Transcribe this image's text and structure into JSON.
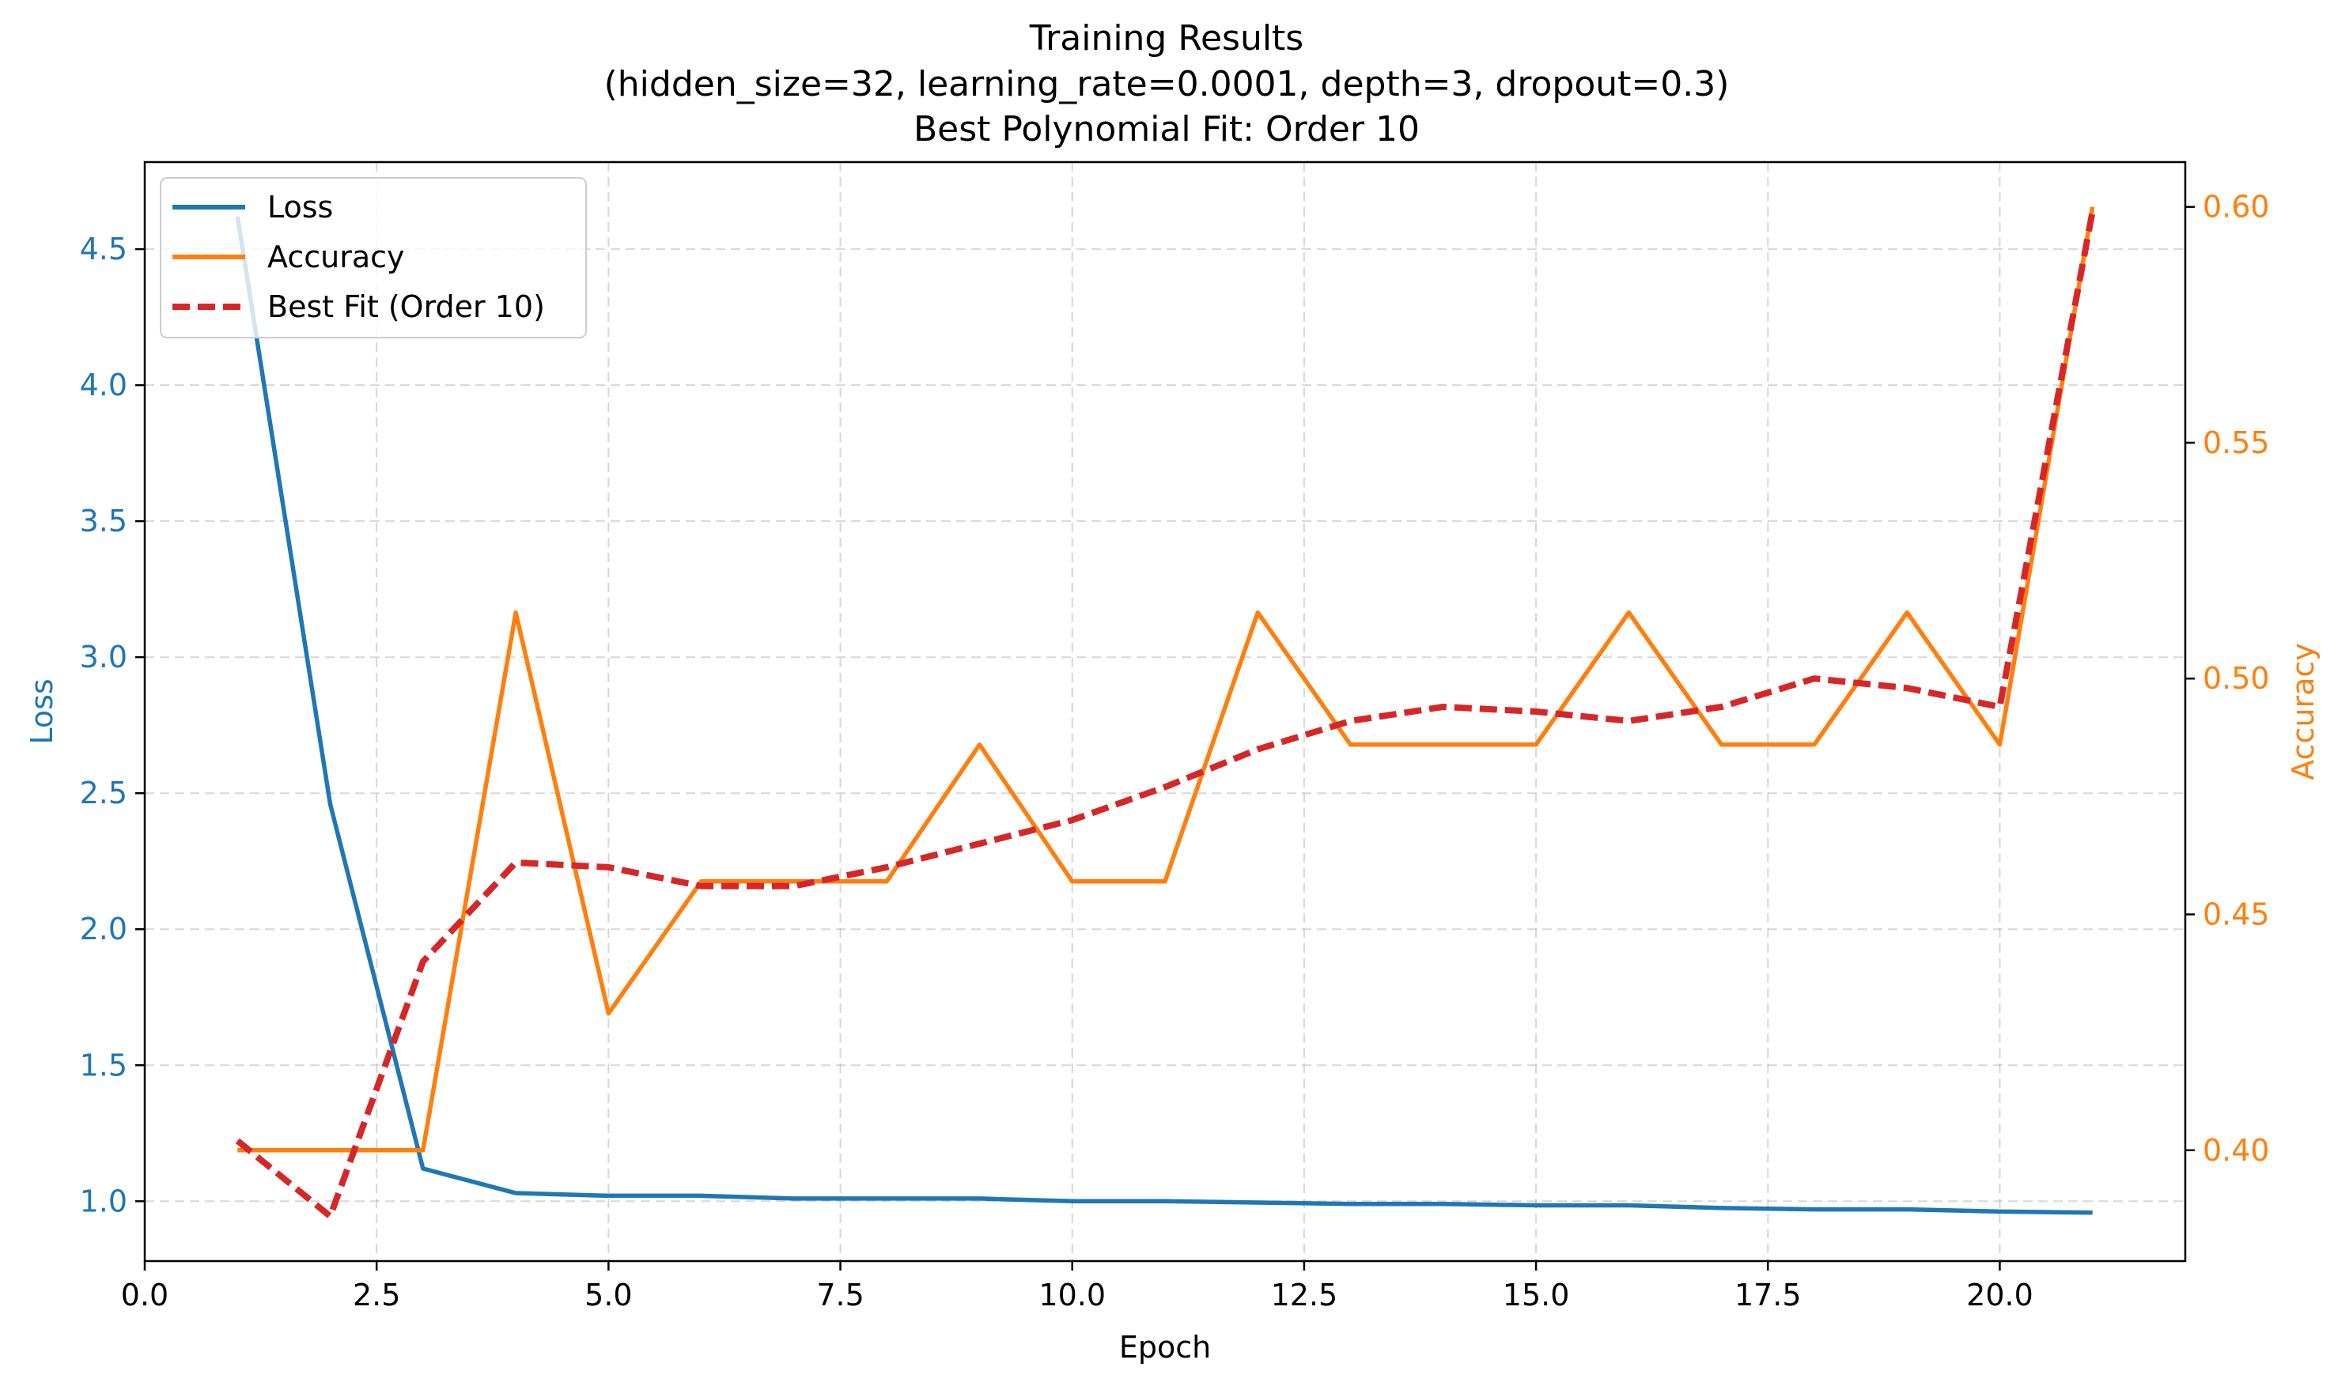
{
  "chart_data": {
    "type": "line",
    "title_lines": [
      "Training Results",
      "(hidden_size=32, learning_rate=0.0001, depth=3, dropout=0.3)",
      "Best Polynomial Fit: Order 10"
    ],
    "xlabel": "Epoch",
    "ylabel_left": "Loss",
    "ylabel_right": "Accuracy",
    "xlim": [
      0,
      22
    ],
    "ylim_left": [
      0.78,
      4.82
    ],
    "ylim_right": [
      0.3765,
      0.6095
    ],
    "xticks": [
      0,
      2.5,
      5,
      7.5,
      10,
      12.5,
      15,
      17.5,
      20
    ],
    "xtick_labels": [
      "0.0",
      "2.5",
      "5.0",
      "7.5",
      "10.0",
      "12.5",
      "15.0",
      "17.5",
      "20.0"
    ],
    "yticks_left": [
      1.0,
      1.5,
      2.0,
      2.5,
      3.0,
      3.5,
      4.0,
      4.5
    ],
    "ytick_labels_left": [
      "1.0",
      "1.5",
      "2.0",
      "2.5",
      "3.0",
      "3.5",
      "4.0",
      "4.5"
    ],
    "yticks_right": [
      0.4,
      0.45,
      0.5,
      0.55,
      0.6
    ],
    "ytick_labels_right": [
      "0.40",
      "0.45",
      "0.50",
      "0.55",
      "0.60"
    ],
    "grid": true,
    "legend_position": "top-left",
    "colors": {
      "loss": "#1f77b4",
      "accuracy": "#ff7f0e",
      "fit": "#d62728"
    },
    "x": [
      1,
      2,
      3,
      4,
      5,
      6,
      7,
      8,
      9,
      10,
      11,
      12,
      13,
      14,
      15,
      16,
      17,
      18,
      19,
      20,
      21
    ],
    "series": [
      {
        "name": "Loss",
        "axis": "left",
        "style": "solid",
        "values": [
          4.62,
          2.46,
          1.12,
          1.03,
          1.02,
          1.02,
          1.01,
          1.01,
          1.01,
          1.0,
          1.0,
          0.995,
          0.99,
          0.99,
          0.985,
          0.985,
          0.975,
          0.97,
          0.97,
          0.962,
          0.958
        ]
      },
      {
        "name": "Accuracy",
        "axis": "right",
        "style": "solid",
        "values": [
          0.4,
          0.4,
          0.4,
          0.514,
          0.429,
          0.457,
          0.457,
          0.457,
          0.486,
          0.457,
          0.457,
          0.514,
          0.486,
          0.486,
          0.486,
          0.514,
          0.486,
          0.486,
          0.514,
          0.486,
          0.6
        ]
      },
      {
        "name": "Best Fit (Order 10)",
        "axis": "right",
        "style": "dashed",
        "values": [
          0.402,
          0.386,
          0.44,
          0.461,
          0.46,
          0.456,
          0.456,
          0.46,
          0.465,
          0.47,
          0.477,
          0.485,
          0.491,
          0.494,
          0.493,
          0.491,
          0.494,
          0.5,
          0.498,
          0.494,
          0.599
        ]
      }
    ]
  }
}
